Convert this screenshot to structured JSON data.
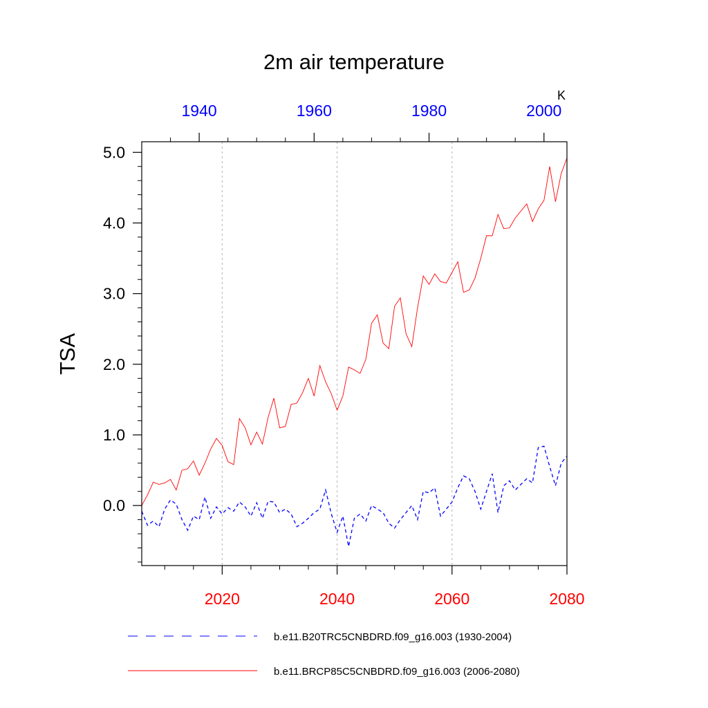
{
  "chart_data": {
    "type": "line",
    "title": "2m air temperature",
    "ylabel": "TSA",
    "units": "K",
    "ylim": [
      -0.85,
      5.15
    ],
    "y_ticks": [
      0.0,
      1.0,
      2.0,
      3.0,
      4.0,
      5.0
    ],
    "y_tick_labels": [
      "0.0",
      "1.0",
      "2.0",
      "3.0",
      "4.0",
      "5.0"
    ],
    "x_bottom": {
      "range": [
        2006,
        2080
      ],
      "ticks": [
        2020,
        2040,
        2060,
        2080
      ],
      "tick_labels": [
        "2020",
        "2040",
        "2060",
        "2080"
      ],
      "color": "#ff0000"
    },
    "x_top": {
      "range": [
        1930,
        2004
      ],
      "ticks": [
        1940,
        1960,
        1980,
        2000
      ],
      "tick_labels": [
        "1940",
        "1960",
        "1980",
        "2000"
      ],
      "color": "#0000ff"
    },
    "grid": "vertical dotted at major bottom ticks",
    "legend_position": "bottom",
    "series": [
      {
        "name": "b.e11.B20TRC5CNBDRD.f09_g16.003 (1930-2004)",
        "axis": "top",
        "color": "#0000ff",
        "style": "dashed",
        "x_start": 1930,
        "values": [
          -0.08,
          -0.28,
          -0.22,
          -0.3,
          -0.05,
          0.08,
          0.02,
          -0.2,
          -0.35,
          -0.15,
          -0.2,
          0.12,
          -0.18,
          -0.02,
          -0.12,
          -0.03,
          -0.08,
          0.05,
          -0.02,
          -0.15,
          0.04,
          -0.18,
          0.06,
          0.05,
          -0.1,
          -0.05,
          -0.12,
          -0.3,
          -0.25,
          -0.18,
          -0.1,
          -0.05,
          0.22,
          -0.12,
          -0.38,
          -0.15,
          -0.58,
          -0.18,
          -0.12,
          -0.22,
          0.0,
          -0.05,
          -0.1,
          -0.25,
          -0.32,
          -0.2,
          -0.1,
          0.0,
          -0.2,
          0.2,
          0.18,
          0.25,
          -0.15,
          -0.05,
          0.05,
          0.25,
          0.42,
          0.38,
          0.2,
          -0.05,
          0.2,
          0.45,
          -0.1,
          0.28,
          0.35,
          0.22,
          0.3,
          0.38,
          0.32,
          0.82,
          0.84,
          0.55,
          0.28,
          0.6,
          0.7
        ]
      },
      {
        "name": "b.e11.BRCP85C5CNBDRD.f09_g16.003 (2006-2080)",
        "axis": "bottom",
        "color": "#ff0000",
        "style": "solid",
        "x_start": 2006,
        "values": [
          0.0,
          0.15,
          0.33,
          0.3,
          0.32,
          0.37,
          0.22,
          0.5,
          0.52,
          0.63,
          0.43,
          0.6,
          0.8,
          0.95,
          0.85,
          0.62,
          0.58,
          1.23,
          1.1,
          0.86,
          1.04,
          0.87,
          1.25,
          1.52,
          1.1,
          1.12,
          1.43,
          1.45,
          1.6,
          1.8,
          1.55,
          1.98,
          1.75,
          1.58,
          1.35,
          1.55,
          1.96,
          1.92,
          1.87,
          2.07,
          2.58,
          2.7,
          2.3,
          2.22,
          2.82,
          2.94,
          2.43,
          2.25,
          2.8,
          3.25,
          3.13,
          3.28,
          3.17,
          3.15,
          3.3,
          3.45,
          3.02,
          3.05,
          3.22,
          3.5,
          3.82,
          3.82,
          4.12,
          3.92,
          3.93,
          4.07,
          4.17,
          4.27,
          4.02,
          4.2,
          4.32,
          4.8,
          4.3,
          4.7,
          4.92
        ]
      }
    ]
  }
}
